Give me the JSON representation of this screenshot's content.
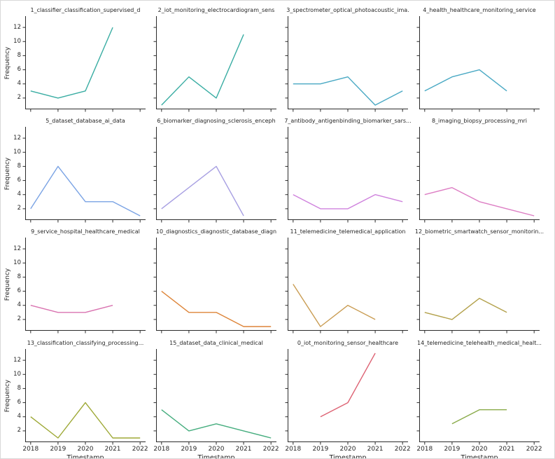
{
  "figure": {
    "background": "#ffffff",
    "spine_color": "#2b2b2b",
    "text_color": "#262626"
  },
  "chart_data": {
    "type": "line",
    "layout": {
      "rows": 4,
      "cols": 4,
      "shared_x": true,
      "shared_y": true,
      "grid": false,
      "legend": "none",
      "spines": [
        "left",
        "bottom"
      ]
    },
    "xlabel": "Timestamp",
    "ylabel": "Frequency",
    "xlim": [
      2017.8,
      2022.2
    ],
    "ylim": [
      0.4,
      13.6
    ],
    "x_ticks": [
      2018,
      2019,
      2020,
      2021,
      2022
    ],
    "x_tick_labels": [
      "2018",
      "2019",
      "2020",
      "2021",
      "2022"
    ],
    "y_ticks": [
      2,
      4,
      6,
      8,
      10,
      12
    ],
    "y_tick_labels": [
      "2",
      "4",
      "6",
      "8",
      "10",
      "12"
    ],
    "subplots": [
      {
        "title": "1_classifier_classification_supervised_d",
        "color": "#3aada3",
        "x": [
          2018,
          2019,
          2020,
          2021
        ],
        "y": [
          3,
          2,
          3,
          12
        ]
      },
      {
        "title": "2_iot_monitoring_electrocardiogram_sens",
        "color": "#3aada3",
        "x": [
          2018,
          2019,
          2020,
          2021
        ],
        "y": [
          1,
          5,
          2,
          11
        ]
      },
      {
        "title": "3_spectrometer_optical_photoacoustic_ima.",
        "color": "#4aa9c4",
        "x": [
          2018,
          2019,
          2020,
          2021,
          2022
        ],
        "y": [
          4,
          4,
          5,
          1,
          3
        ]
      },
      {
        "title": "4_health_healthcare_monitoring_service",
        "color": "#4aa9c4",
        "x": [
          2018,
          2019,
          2020,
          2021
        ],
        "y": [
          3,
          5,
          6,
          3
        ]
      },
      {
        "title": "5_dataset_database_ai_data",
        "color": "#7aa3e4",
        "x": [
          2018,
          2019,
          2020,
          2021,
          2022
        ],
        "y": [
          2,
          8,
          3,
          3,
          1
        ]
      },
      {
        "title": "6_biomarker_diagnosing_sclerosis_enceph",
        "color": "#a79fe2",
        "x": [
          2018,
          2020,
          2021
        ],
        "y": [
          2,
          8,
          1
        ]
      },
      {
        "title": "7_antibody_antigenbinding_biomarker_sars...",
        "color": "#cf82dd",
        "x": [
          2018,
          2019,
          2020,
          2021,
          2022
        ],
        "y": [
          4,
          2,
          2,
          4,
          3
        ]
      },
      {
        "title": "8_imaging_biopsy_processing_mri",
        "color": "#dd7ec4",
        "x": [
          2018,
          2019,
          2020,
          2021,
          2022
        ],
        "y": [
          4,
          5,
          3,
          2,
          1
        ]
      },
      {
        "title": "9_service_hospital_healthcare_medical",
        "color": "#d973b0",
        "x": [
          2018,
          2019,
          2020,
          2021
        ],
        "y": [
          4,
          3,
          3,
          4
        ]
      },
      {
        "title": "10_diagnostics_diagnostic_database_diagn",
        "color": "#dd8438",
        "x": [
          2018,
          2019,
          2020,
          2021,
          2022
        ],
        "y": [
          6,
          3,
          3,
          1,
          1
        ]
      },
      {
        "title": "11_telemedicine_telemedical_application",
        "color": "#c99c52",
        "x": [
          2018,
          2019,
          2020,
          2021
        ],
        "y": [
          7,
          1,
          4,
          2
        ]
      },
      {
        "title": "12_biometric_smartwatch_sensor_monitorin...",
        "color": "#b3a14b",
        "x": [
          2018,
          2019,
          2020,
          2021
        ],
        "y": [
          3,
          2,
          5,
          3
        ]
      },
      {
        "title": "13_classification_classifying_processing...",
        "color": "#9da835",
        "x": [
          2018,
          2019,
          2020,
          2021,
          2022
        ],
        "y": [
          4,
          1,
          6,
          1,
          1
        ]
      },
      {
        "title": "15_dataset_data_clinical_medical",
        "color": "#45ad7e",
        "x": [
          2018,
          2019,
          2020,
          2021,
          2022
        ],
        "y": [
          5,
          2,
          3,
          2,
          1
        ]
      },
      {
        "title": "0_iot_monitoring_sensor_healthcare",
        "color": "#dd6273",
        "x": [
          2019,
          2020,
          2021
        ],
        "y": [
          4,
          6,
          13
        ]
      },
      {
        "title": "14_telemedicine_telehealth_medical_healt...",
        "color": "#8aab4a",
        "x": [
          2019,
          2020,
          2021
        ],
        "y": [
          3,
          5,
          5
        ]
      }
    ]
  }
}
